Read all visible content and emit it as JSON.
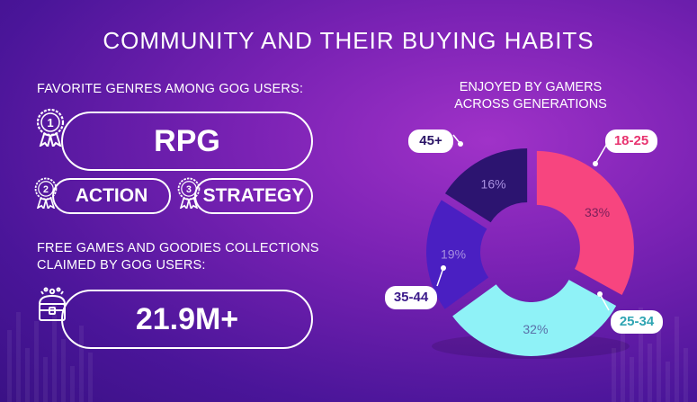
{
  "title": "COMMUNITY AND THEIR BUYING HABITS",
  "genres": {
    "label": "FAVORITE GENRES AMONG GOG USERS:",
    "items": [
      {
        "rank": "1",
        "name": "RPG"
      },
      {
        "rank": "2",
        "name": "ACTION"
      },
      {
        "rank": "3",
        "name": "STRATEGY"
      }
    ]
  },
  "collections": {
    "label_line1": "FREE GAMES AND GOODIES COLLECTIONS",
    "label_line2": "CLAIMED BY GOG USERS:",
    "value": "21.9M+",
    "icon": "treasure-chest-icon"
  },
  "chart_data": {
    "type": "pie",
    "title_line1": "ENJOYED BY GAMERS",
    "title_line2": "ACROSS GENERATIONS",
    "slices": [
      {
        "label": "18-25",
        "value": 33,
        "display": "33%",
        "color": "#f7457f",
        "label_color": "#e8336f"
      },
      {
        "label": "25-34",
        "value": 32,
        "display": "32%",
        "color": "#8ff2f7",
        "label_color": "#2fa5b3"
      },
      {
        "label": "35-44",
        "value": 19,
        "display": "19%",
        "color": "#4a1fc2",
        "label_color": "#3b1a8a"
      },
      {
        "label": "45+",
        "value": 16,
        "display": "16%",
        "color": "#2c1470",
        "label_color": "#2a1466"
      }
    ]
  }
}
